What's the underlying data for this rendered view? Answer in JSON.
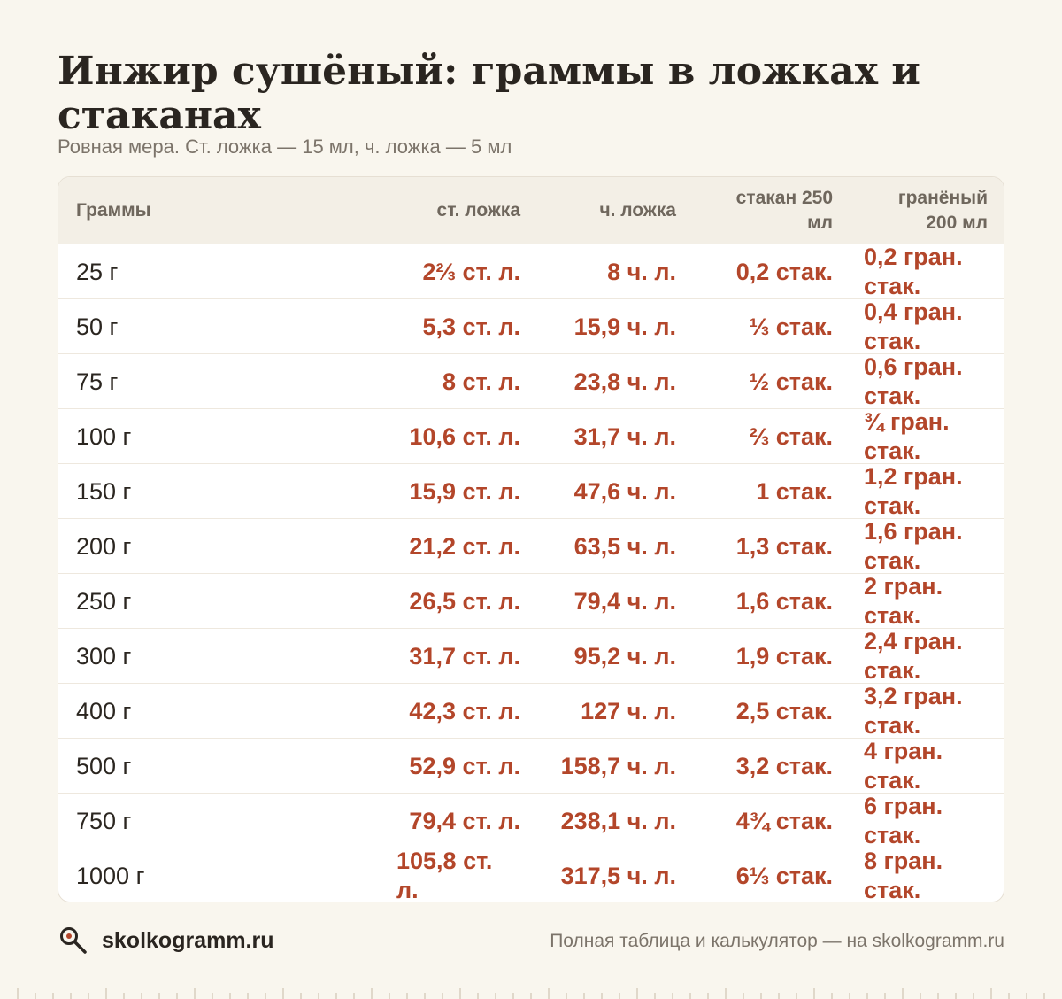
{
  "title": "Инжир сушёный: граммы в ложках и стаканах",
  "subtitle": "Ровная мера. Ст. ложка — 15 мл, ч. ложка — 5 мл",
  "table": {
    "headers": {
      "grams": "Граммы",
      "tablespoon": "ст. ложка",
      "teaspoon": "ч. ложка",
      "glass250_line1": "стакан 250",
      "glass250_line2": "мл",
      "faceted_line1": "гранёный",
      "faceted_line2": "200 мл"
    },
    "rows": [
      {
        "grams": "25 г",
        "tbsp": "2⅔ ст. л.",
        "tsp": "8 ч. л.",
        "glass": "0,2 стак.",
        "faceted": "0,2 гран. стак."
      },
      {
        "grams": "50 г",
        "tbsp": "5,3 ст. л.",
        "tsp": "15,9 ч. л.",
        "glass": "⅓ стак.",
        "faceted": "0,4 гран. стак."
      },
      {
        "grams": "75 г",
        "tbsp": "8 ст. л.",
        "tsp": "23,8 ч. л.",
        "glass": "½ стак.",
        "faceted": "0,6 гран. стак."
      },
      {
        "grams": "100 г",
        "tbsp": "10,6 ст. л.",
        "tsp": "31,7 ч. л.",
        "glass": "⅔ стак.",
        "faceted": "¾ гран. стак."
      },
      {
        "grams": "150 г",
        "tbsp": "15,9 ст. л.",
        "tsp": "47,6 ч. л.",
        "glass": "1 стак.",
        "faceted": "1,2 гран. стак."
      },
      {
        "grams": "200 г",
        "tbsp": "21,2 ст. л.",
        "tsp": "63,5 ч. л.",
        "glass": "1,3 стак.",
        "faceted": "1,6 гран. стак."
      },
      {
        "grams": "250 г",
        "tbsp": "26,5 ст. л.",
        "tsp": "79,4 ч. л.",
        "glass": "1,6 стак.",
        "faceted": "2 гран. стак."
      },
      {
        "grams": "300 г",
        "tbsp": "31,7 ст. л.",
        "tsp": "95,2 ч. л.",
        "glass": "1,9 стак.",
        "faceted": "2,4 гран. стак."
      },
      {
        "grams": "400 г",
        "tbsp": "42,3 ст. л.",
        "tsp": "127 ч. л.",
        "glass": "2,5 стак.",
        "faceted": "3,2 гран. стак."
      },
      {
        "grams": "500 г",
        "tbsp": "52,9 ст. л.",
        "tsp": "158,7 ч. л.",
        "glass": "3,2 стак.",
        "faceted": "4 гран. стак."
      },
      {
        "grams": "750 г",
        "tbsp": "79,4 ст. л.",
        "tsp": "238,1 ч. л.",
        "glass": "4¾ стак.",
        "faceted": "6 гран. стак."
      },
      {
        "grams": "1000 г",
        "tbsp": "105,8 ст. л.",
        "tsp": "317,5 ч. л.",
        "glass": "6⅓ стак.",
        "faceted": "8 гран. стак."
      }
    ]
  },
  "footer": {
    "brand": "skolkogramm.ru",
    "note": "Полная таблица и калькулятор — на skolkogramm.ru",
    "logo_icon": "magnifier-icon"
  },
  "colors": {
    "background": "#f9f6ee",
    "accent": "#b3462a",
    "header_bg": "#f3efe6"
  }
}
